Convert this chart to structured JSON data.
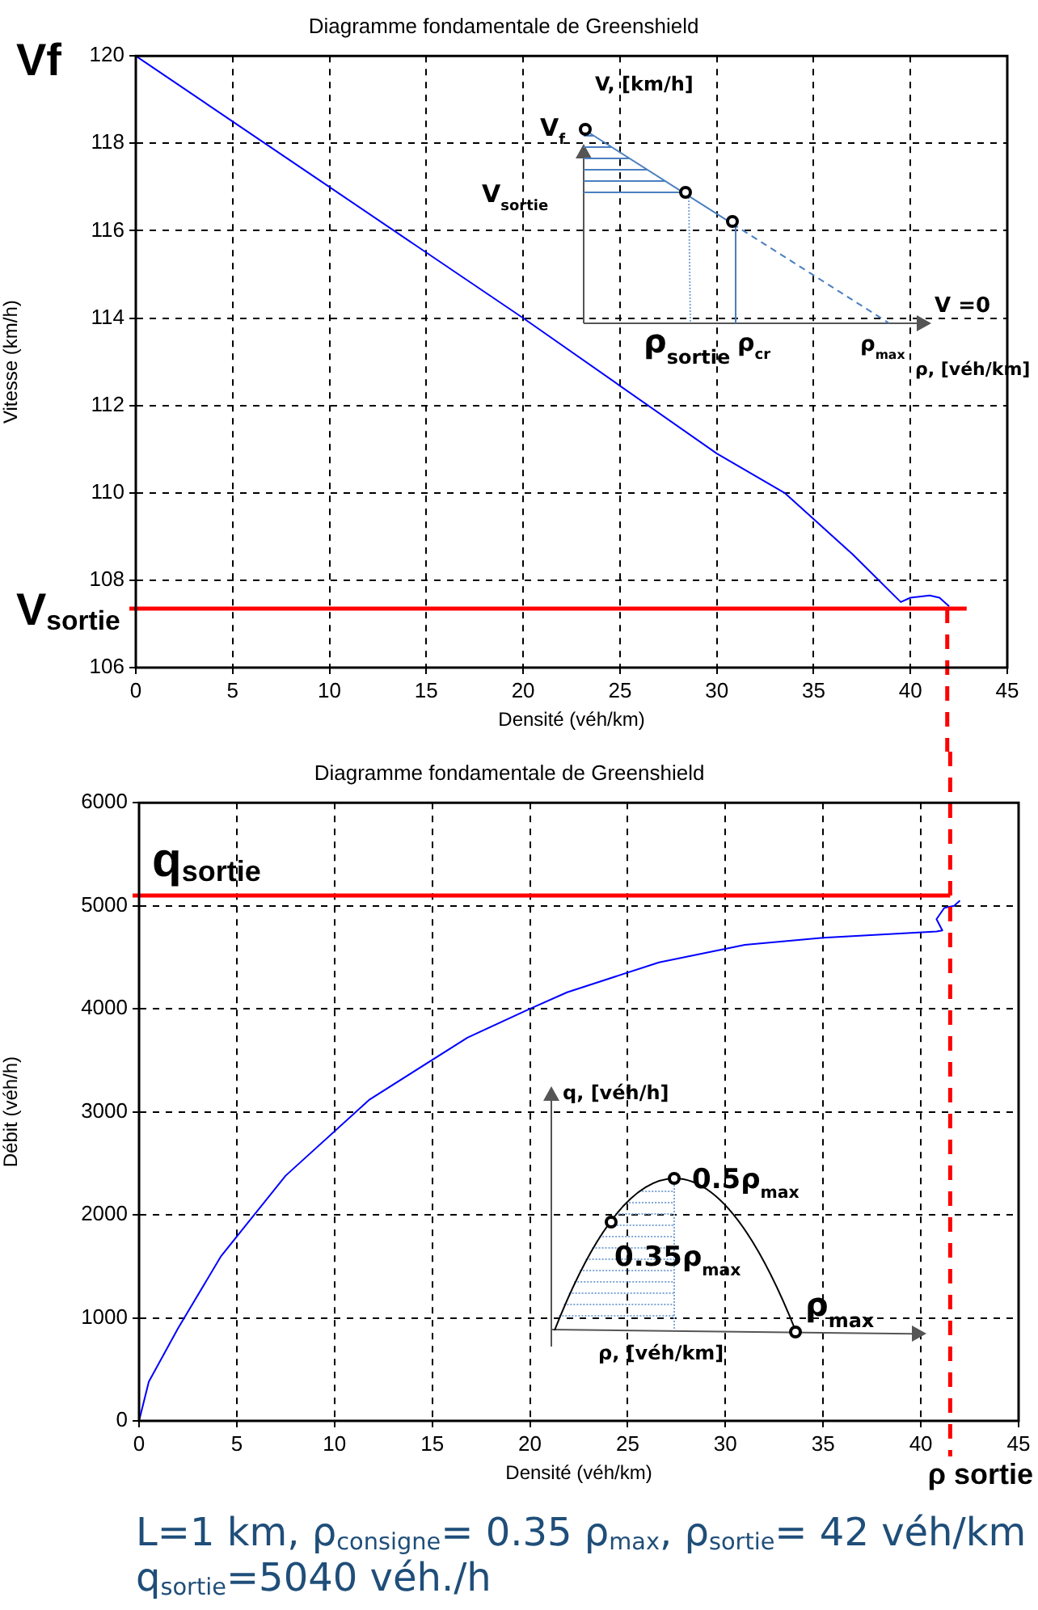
{
  "chart_data": [
    {
      "type": "line",
      "title": "Diagramme fondamentale de Greenshield",
      "xlabel": "Densité (véh/km)",
      "ylabel": "Vitesse (km/h)",
      "xlim": [
        0,
        45
      ],
      "xticks": [
        0,
        5,
        10,
        15,
        20,
        25,
        30,
        35,
        40,
        45
      ],
      "ylim": [
        106,
        120
      ],
      "yticks": [
        106,
        108,
        110,
        112,
        114,
        116,
        118,
        120
      ],
      "grid": true,
      "series": [
        {
          "color": "#0000ff",
          "x": [
            0,
            10,
            20,
            30,
            33.5,
            37,
            39.5,
            40,
            41,
            41.5,
            42
          ],
          "values": [
            120,
            117,
            114,
            110.9,
            110,
            108.6,
            107.5,
            107.6,
            107.65,
            107.6,
            107.4
          ]
        }
      ],
      "ref_lines": [
        {
          "axis": "y",
          "value": 107.35,
          "label": "V$_{sortie}$",
          "color": "#ff0000"
        },
        {
          "axis": "x",
          "value": 41.9,
          "color": "#ff0000",
          "line_style": "dashed"
        }
      ],
      "annotations": [
        {
          "text": "Vf",
          "x": 0,
          "y": 120
        },
        "V, [km/h]",
        "V$_{f}$",
        "V$_{sortie}$",
        "ρ$_{sortie}$",
        "ρ$_{cr}$",
        "ρ$_{max}$",
        "V =0",
        "ρ, [véh/km]"
      ]
    },
    {
      "type": "line",
      "title": "Diagramme fondamentale de Greenshield",
      "xlabel": "Densité (véh/km)",
      "ylabel": "Débit (véh/h)",
      "xlim": [
        0,
        45
      ],
      "xticks": [
        0,
        5,
        10,
        15,
        20,
        25,
        30,
        35,
        40,
        45
      ],
      "ylim": [
        0,
        6000
      ],
      "yticks": [
        0,
        1000,
        2000,
        3000,
        4000,
        5000,
        6000
      ],
      "grid": true,
      "series": [
        {
          "color": "#0000ff",
          "x": [
            0,
            0.5,
            2,
            4.2,
            7.5,
            11.8,
            16.8,
            20,
            21.9,
            26.6,
            31,
            35,
            40.8,
            41.1,
            40.8,
            41.2,
            41.7,
            42
          ],
          "values": [
            0,
            380,
            900,
            1600,
            2380,
            3120,
            3720,
            4000,
            4160,
            4450,
            4620,
            4690,
            4750,
            4760,
            4870,
            4980,
            5000,
            5050
          ]
        }
      ],
      "ref_lines": [
        {
          "axis": "y",
          "value": 5100,
          "label": "q$_{sortie}$",
          "color": "#ff0000"
        },
        {
          "axis": "x",
          "value": 41.5,
          "label": "ρ sortie",
          "color": "#ff0000",
          "line_style": "dashed"
        }
      ],
      "annotations": [
        "q, [véh/h]",
        "0.5ρ$_{max}$",
        "0.35ρ$_{max}$",
        "ρ$_{max}$",
        "ρ, [véh/km]",
        "L=1 km, ρ$_{consigne}$= 0.35 ρ$_{max}$, ρ$_{sortie}$= 42 véh/km",
        "q$_{sortie}$=5040 véh./h"
      ]
    }
  ]
}
